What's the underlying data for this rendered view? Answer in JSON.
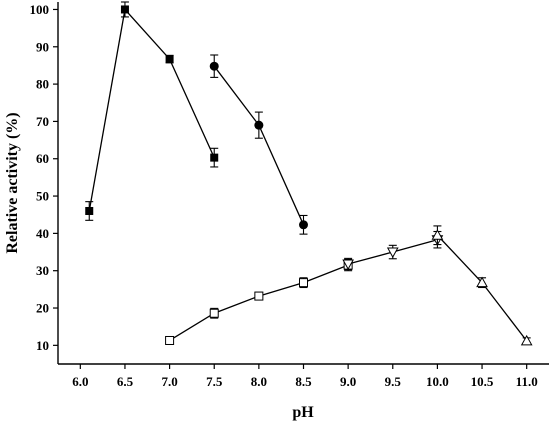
{
  "chart_data": {
    "type": "line",
    "xlabel": "pH",
    "ylabel": "Relative activity (%)",
    "xlim": [
      5.75,
      11.25
    ],
    "ylim": [
      5,
      102
    ],
    "xticks": [
      "6.0",
      "6.5",
      "7.0",
      "7.5",
      "8.0",
      "8.5",
      "9.0",
      "9.5",
      "10.0",
      "10.5",
      "11.0"
    ],
    "yticks": [
      "10",
      "20",
      "30",
      "40",
      "50",
      "60",
      "70",
      "80",
      "90",
      "100"
    ],
    "grid": false,
    "legend": "none",
    "series": [
      {
        "marker": "filled-square",
        "x": [
          6.1,
          6.5,
          7.0,
          7.5
        ],
        "values": [
          46,
          100,
          86.7,
          60.3
        ],
        "errors": [
          2.5,
          2.0,
          1.0,
          2.5
        ]
      },
      {
        "marker": "filled-circle",
        "x": [
          7.5,
          8.0,
          8.5
        ],
        "values": [
          84.8,
          69,
          42.3
        ],
        "errors": [
          3.0,
          3.5,
          2.5
        ]
      },
      {
        "marker": "open-square",
        "x": [
          7.0,
          7.5,
          8.0,
          8.5,
          9.0
        ],
        "values": [
          11.3,
          18.6,
          23.2,
          26.8,
          31.5
        ],
        "errors": [
          0.8,
          1.3,
          1.0,
          1.3,
          1.5
        ]
      },
      {
        "marker": "open-triangle-down",
        "x": [
          9.0,
          9.5,
          10.0
        ],
        "values": [
          31.8,
          35,
          38.3
        ],
        "errors": [
          1.5,
          1.8,
          2.2
        ]
      },
      {
        "marker": "open-triangle-up",
        "x": [
          10.0,
          10.5,
          11.0
        ],
        "values": [
          39.5,
          26.8,
          11.2
        ],
        "errors": [
          2.5,
          1.3,
          0.8
        ]
      }
    ]
  }
}
